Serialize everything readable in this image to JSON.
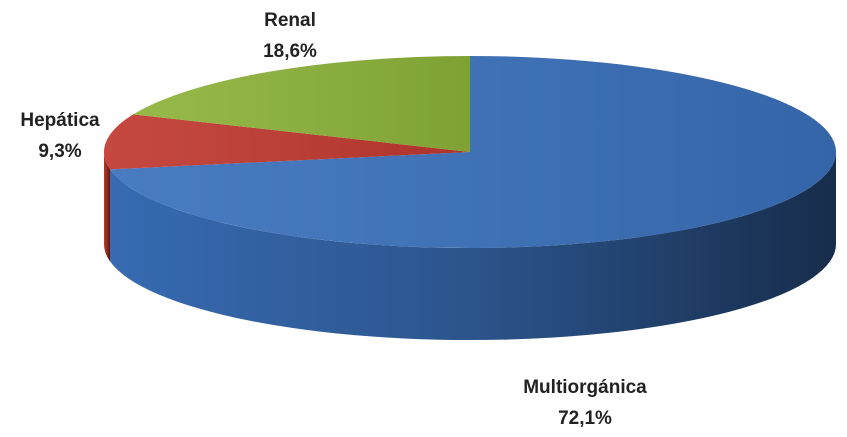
{
  "chart_data": {
    "type": "pie",
    "categories": [
      "Multiorgánica",
      "Hepática",
      "Renal"
    ],
    "values": [
      72.1,
      9.3,
      18.6
    ],
    "value_labels": [
      "72,1%",
      "9,3%",
      "18,6%"
    ],
    "colors": [
      "#3a70bb",
      "#c0392f",
      "#8db33a"
    ]
  }
}
